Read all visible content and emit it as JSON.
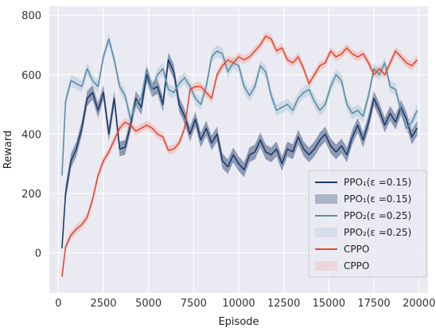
{
  "chart_data": {
    "type": "line",
    "xlabel": "Episode",
    "ylabel": "Reward",
    "xlim": [
      -500,
      20500
    ],
    "ylim": [
      -135,
      830
    ],
    "x_ticks": [
      0,
      2500,
      5000,
      7500,
      10000,
      12500,
      15000,
      17500,
      20000
    ],
    "y_ticks": [
      0,
      200,
      400,
      600,
      800
    ],
    "grid": true,
    "legend_position": "bottom-right",
    "series": [
      {
        "name": "PPO₁(ε =0.15)",
        "color": "#1f3a68",
        "band_color": "#1f3a68",
        "x": [
          200,
          400,
          700,
          1000,
          1300,
          1600,
          1900,
          2200,
          2500,
          2800,
          3100,
          3400,
          3700,
          4000,
          4300,
          4600,
          4900,
          5200,
          5500,
          5800,
          6100,
          6400,
          6700,
          7000,
          7300,
          7600,
          7900,
          8200,
          8500,
          8800,
          9100,
          9400,
          9700,
          10000,
          10300,
          10600,
          10900,
          11200,
          11500,
          11800,
          12100,
          12400,
          12700,
          13000,
          13300,
          13600,
          13900,
          14200,
          14500,
          14800,
          15100,
          15400,
          15700,
          16000,
          16300,
          16600,
          16900,
          17200,
          17500,
          17800,
          18100,
          18400,
          18700,
          19000,
          19300,
          19600,
          19900
        ],
        "values": [
          15,
          200,
          310,
          350,
          420,
          520,
          540,
          480,
          540,
          400,
          520,
          350,
          355,
          430,
          520,
          490,
          600,
          550,
          560,
          500,
          650,
          610,
          500,
          460,
          400,
          450,
          380,
          420,
          370,
          400,
          310,
          290,
          330,
          300,
          280,
          330,
          340,
          380,
          340,
          330,
          350,
          300,
          350,
          340,
          390,
          350,
          330,
          350,
          380,
          400,
          360,
          340,
          360,
          330,
          390,
          430,
          380,
          440,
          520,
          480,
          430,
          470,
          440,
          490,
          450,
          390,
          420
        ],
        "band_width": [
          5,
          25,
          25,
          25,
          25,
          25,
          25,
          25,
          25,
          25,
          25,
          25,
          25,
          25,
          25,
          25,
          25,
          25,
          25,
          25,
          25,
          25,
          25,
          25,
          25,
          25,
          25,
          25,
          25,
          25,
          25,
          25,
          25,
          25,
          25,
          25,
          25,
          25,
          25,
          25,
          25,
          25,
          25,
          25,
          25,
          25,
          25,
          25,
          25,
          25,
          25,
          25,
          25,
          25,
          25,
          25,
          25,
          25,
          25,
          25,
          25,
          25,
          25,
          25,
          25,
          25,
          25
        ]
      },
      {
        "name": "PPO₂(ε =0.25)",
        "color": "#5b8fa8",
        "band_color": "#a9c4d3",
        "x": [
          200,
          400,
          700,
          1000,
          1300,
          1600,
          1900,
          2200,
          2500,
          2800,
          3100,
          3400,
          3700,
          4000,
          4300,
          4600,
          4900,
          5200,
          5500,
          5800,
          6100,
          6400,
          6700,
          7000,
          7300,
          7600,
          7900,
          8200,
          8500,
          8800,
          9100,
          9400,
          9700,
          10000,
          10300,
          10600,
          10900,
          11200,
          11500,
          11800,
          12100,
          12400,
          12700,
          13000,
          13300,
          13600,
          13900,
          14200,
          14500,
          14800,
          15100,
          15400,
          15700,
          16000,
          16300,
          16600,
          16900,
          17200,
          17500,
          17800,
          18100,
          18400,
          18700,
          19000,
          19300,
          19600,
          19900
        ],
        "values": [
          260,
          510,
          580,
          570,
          560,
          620,
          580,
          560,
          660,
          720,
          650,
          560,
          530,
          450,
          500,
          520,
          620,
          550,
          600,
          620,
          550,
          540,
          570,
          590,
          560,
          520,
          500,
          560,
          660,
          680,
          670,
          610,
          640,
          630,
          560,
          530,
          560,
          630,
          610,
          530,
          480,
          490,
          500,
          480,
          520,
          540,
          550,
          510,
          480,
          500,
          560,
          600,
          580,
          500,
          470,
          480,
          460,
          530,
          620,
          600,
          640,
          560,
          550,
          480,
          420,
          440,
          480
        ],
        "band_width": [
          10,
          20,
          20,
          20,
          20,
          20,
          20,
          20,
          20,
          20,
          20,
          20,
          20,
          20,
          20,
          20,
          20,
          20,
          20,
          20,
          20,
          20,
          20,
          20,
          20,
          20,
          20,
          20,
          20,
          20,
          20,
          20,
          20,
          20,
          20,
          20,
          20,
          20,
          20,
          20,
          20,
          20,
          20,
          20,
          20,
          20,
          20,
          20,
          20,
          20,
          20,
          20,
          20,
          20,
          20,
          20,
          20,
          20,
          20,
          20,
          20,
          20,
          20,
          20,
          20,
          20,
          20
        ]
      },
      {
        "name": "CPPO",
        "color": "#e24a33",
        "band_color": "#f2a9a0",
        "x": [
          200,
          400,
          700,
          1000,
          1300,
          1600,
          1900,
          2200,
          2500,
          2800,
          3100,
          3400,
          3700,
          4000,
          4300,
          4600,
          4900,
          5200,
          5500,
          5800,
          6100,
          6400,
          6700,
          7000,
          7300,
          7600,
          7900,
          8200,
          8500,
          8800,
          9100,
          9400,
          9700,
          10000,
          10300,
          10600,
          10900,
          11200,
          11500,
          11800,
          12100,
          12400,
          12700,
          13000,
          13300,
          13600,
          13900,
          14200,
          14500,
          14800,
          15100,
          15400,
          15700,
          16000,
          16300,
          16600,
          16900,
          17200,
          17500,
          17800,
          18100,
          18400,
          18700,
          19000,
          19300,
          19600,
          19900
        ],
        "values": [
          -80,
          20,
          60,
          80,
          95,
          120,
          180,
          260,
          310,
          340,
          380,
          420,
          440,
          430,
          410,
          420,
          430,
          420,
          400,
          390,
          345,
          350,
          370,
          420,
          550,
          560,
          560,
          540,
          520,
          600,
          630,
          650,
          640,
          660,
          650,
          660,
          680,
          700,
          730,
          720,
          680,
          690,
          650,
          640,
          660,
          620,
          570,
          600,
          630,
          640,
          680,
          660,
          670,
          690,
          670,
          660,
          670,
          640,
          600,
          620,
          600,
          640,
          680,
          660,
          640,
          630,
          650
        ],
        "band_width": [
          15,
          15,
          15,
          15,
          15,
          15,
          15,
          15,
          15,
          15,
          15,
          15,
          15,
          15,
          15,
          15,
          15,
          15,
          15,
          15,
          15,
          15,
          15,
          15,
          15,
          15,
          15,
          15,
          15,
          15,
          15,
          15,
          15,
          15,
          15,
          15,
          15,
          15,
          15,
          15,
          15,
          15,
          15,
          15,
          15,
          15,
          15,
          15,
          15,
          15,
          15,
          15,
          15,
          15,
          15,
          15,
          15,
          15,
          15,
          15,
          15,
          15,
          15,
          15,
          15,
          15,
          15
        ]
      }
    ],
    "legend": [
      {
        "label": "PPO₁(ε =0.15)",
        "kind": "line",
        "color": "#1f3a68"
      },
      {
        "label": "PPO₁(ε =0.15)",
        "kind": "band",
        "color": "#1f3a68"
      },
      {
        "label": "PPO₂(ε =0.25)",
        "kind": "line",
        "color": "#5b8fa8"
      },
      {
        "label": "PPO₂(ε =0.25)",
        "kind": "band",
        "color": "#a9c4d3"
      },
      {
        "label": "CPPO",
        "kind": "line",
        "color": "#e24a33"
      },
      {
        "label": "CPPO",
        "kind": "band",
        "color": "#f2a9a0"
      }
    ]
  }
}
